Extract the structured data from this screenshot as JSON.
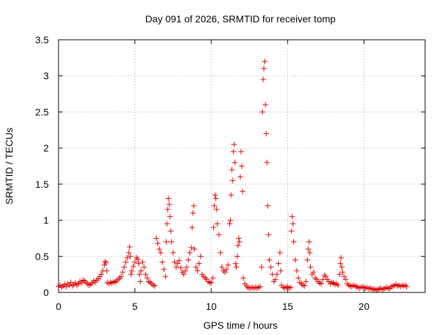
{
  "chart_data": {
    "type": "scatter",
    "title": "Day 091 of 2026, SRMTID for receiver tomp",
    "xlabel": "GPS time / hours",
    "ylabel": "SRMTID / TECUs",
    "xlim": [
      0,
      24
    ],
    "ylim": [
      0,
      3.5
    ],
    "xticks": [
      0,
      5,
      10,
      15,
      20
    ],
    "xtick_labels": [
      "0",
      "5",
      "10",
      "15",
      "20"
    ],
    "yticks": [
      0,
      0.5,
      1,
      1.5,
      2,
      2.5,
      3,
      3.5
    ],
    "ytick_labels": [
      "0",
      "0.5",
      "1",
      "1.5",
      "2",
      "2.5",
      "3",
      "3.5"
    ],
    "grid": true,
    "marker": "plus",
    "color": "#e00000",
    "series": [
      {
        "name": "SRMTID",
        "points": [
          [
            0.0,
            0.08
          ],
          [
            0.1,
            0.1
          ],
          [
            0.2,
            0.07
          ],
          [
            0.3,
            0.09
          ],
          [
            0.4,
            0.11
          ],
          [
            0.5,
            0.08
          ],
          [
            0.6,
            0.12
          ],
          [
            0.7,
            0.1
          ],
          [
            0.8,
            0.14
          ],
          [
            0.9,
            0.09
          ],
          [
            1.0,
            0.11
          ],
          [
            1.1,
            0.13
          ],
          [
            1.2,
            0.1
          ],
          [
            1.3,
            0.12
          ],
          [
            1.4,
            0.15
          ],
          [
            1.5,
            0.13
          ],
          [
            1.6,
            0.17
          ],
          [
            1.7,
            0.16
          ],
          [
            1.8,
            0.14
          ],
          [
            1.9,
            0.12
          ],
          [
            2.0,
            0.1
          ],
          [
            2.1,
            0.11
          ],
          [
            2.2,
            0.13
          ],
          [
            2.3,
            0.16
          ],
          [
            2.4,
            0.14
          ],
          [
            2.5,
            0.17
          ],
          [
            2.6,
            0.19
          ],
          [
            2.7,
            0.22
          ],
          [
            2.8,
            0.25
          ],
          [
            2.9,
            0.3
          ],
          [
            3.0,
            0.38
          ],
          [
            3.05,
            0.43
          ],
          [
            3.1,
            0.41
          ],
          [
            3.15,
            0.3
          ],
          [
            3.2,
            0.14
          ],
          [
            3.3,
            0.12
          ],
          [
            3.4,
            0.14
          ],
          [
            3.5,
            0.13
          ],
          [
            3.6,
            0.15
          ],
          [
            3.7,
            0.14
          ],
          [
            3.8,
            0.16
          ],
          [
            3.9,
            0.18
          ],
          [
            4.0,
            0.2
          ],
          [
            4.1,
            0.22
          ],
          [
            4.2,
            0.28
          ],
          [
            4.3,
            0.35
          ],
          [
            4.4,
            0.42
          ],
          [
            4.5,
            0.48
          ],
          [
            4.6,
            0.55
          ],
          [
            4.65,
            0.63
          ],
          [
            4.7,
            0.5
          ],
          [
            4.75,
            0.25
          ],
          [
            4.8,
            0.3
          ],
          [
            4.9,
            0.36
          ],
          [
            5.0,
            0.42
          ],
          [
            5.1,
            0.48
          ],
          [
            5.2,
            0.46
          ],
          [
            5.25,
            0.4
          ],
          [
            5.3,
            0.25
          ],
          [
            5.35,
            0.15
          ],
          [
            5.4,
            0.3
          ],
          [
            5.5,
            0.42
          ],
          [
            5.6,
            0.35
          ],
          [
            5.7,
            0.25
          ],
          [
            5.8,
            0.2
          ],
          [
            5.9,
            0.15
          ],
          [
            6.0,
            0.14
          ],
          [
            6.1,
            0.12
          ],
          [
            6.2,
            0.1
          ],
          [
            6.3,
            0.09
          ],
          [
            6.4,
            0.75
          ],
          [
            6.5,
            0.68
          ],
          [
            6.6,
            0.6
          ],
          [
            6.7,
            0.55
          ],
          [
            6.8,
            0.42
          ],
          [
            6.9,
            0.32
          ],
          [
            7.0,
            0.22
          ],
          [
            7.05,
            0.7
          ],
          [
            7.1,
            0.95
          ],
          [
            7.15,
            1.15
          ],
          [
            7.2,
            1.3
          ],
          [
            7.25,
            1.22
          ],
          [
            7.3,
            1.05
          ],
          [
            7.35,
            0.85
          ],
          [
            7.4,
            0.7
          ],
          [
            7.5,
            0.55
          ],
          [
            7.6,
            0.42
          ],
          [
            7.7,
            0.35
          ],
          [
            7.8,
            0.4
          ],
          [
            7.9,
            0.44
          ],
          [
            8.0,
            0.34
          ],
          [
            8.1,
            0.28
          ],
          [
            8.2,
            0.25
          ],
          [
            8.3,
            0.3
          ],
          [
            8.4,
            0.35
          ],
          [
            8.5,
            0.45
          ],
          [
            8.6,
            0.55
          ],
          [
            8.7,
            0.62
          ],
          [
            8.75,
            0.9
          ],
          [
            8.8,
            1.1
          ],
          [
            8.85,
            1.2
          ],
          [
            8.9,
            0.6
          ],
          [
            9.0,
            0.35
          ],
          [
            9.1,
            0.3
          ],
          [
            9.2,
            0.4
          ],
          [
            9.3,
            0.5
          ],
          [
            9.4,
            0.25
          ],
          [
            9.5,
            0.22
          ],
          [
            9.6,
            0.2
          ],
          [
            9.7,
            0.18
          ],
          [
            9.8,
            0.15
          ],
          [
            9.9,
            0.13
          ],
          [
            10.0,
            0.14
          ],
          [
            10.1,
            0.2
          ],
          [
            10.15,
            0.9
          ],
          [
            10.2,
            1.2
          ],
          [
            10.25,
            1.35
          ],
          [
            10.3,
            1.3
          ],
          [
            10.35,
            1.15
          ],
          [
            10.4,
            0.95
          ],
          [
            10.5,
            0.8
          ],
          [
            10.6,
            0.55
          ],
          [
            10.7,
            0.35
          ],
          [
            10.8,
            0.3
          ],
          [
            10.9,
            0.28
          ],
          [
            11.0,
            0.32
          ],
          [
            11.1,
            0.38
          ],
          [
            11.2,
            0.95
          ],
          [
            11.25,
            1.0
          ],
          [
            11.3,
            1.35
          ],
          [
            11.35,
            1.7
          ],
          [
            11.4,
            1.55
          ],
          [
            11.45,
            1.95
          ],
          [
            11.5,
            2.05
          ],
          [
            11.55,
            1.8
          ],
          [
            11.6,
            0.4
          ],
          [
            11.65,
            0.35
          ],
          [
            11.7,
            0.5
          ],
          [
            11.75,
            0.65
          ],
          [
            11.8,
            0.75
          ],
          [
            11.85,
            0.7
          ],
          [
            11.9,
            1.6
          ],
          [
            11.95,
            1.95
          ],
          [
            12.0,
            1.75
          ],
          [
            12.05,
            1.4
          ],
          [
            12.1,
            0.2
          ],
          [
            12.2,
            0.12
          ],
          [
            12.3,
            0.09
          ],
          [
            12.4,
            0.07
          ],
          [
            12.5,
            0.06
          ],
          [
            12.6,
            0.06
          ],
          [
            12.7,
            0.07
          ],
          [
            12.8,
            0.06
          ],
          [
            12.9,
            0.07
          ],
          [
            13.0,
            0.06
          ],
          [
            13.1,
            0.07
          ],
          [
            13.2,
            0.08
          ],
          [
            13.3,
            0.35
          ],
          [
            13.35,
            2.5
          ],
          [
            13.4,
            2.95
          ],
          [
            13.45,
            3.1
          ],
          [
            13.5,
            3.2
          ],
          [
            13.55,
            2.6
          ],
          [
            13.6,
            2.2
          ],
          [
            13.65,
            1.8
          ],
          [
            13.7,
            1.2
          ],
          [
            13.75,
            0.8
          ],
          [
            13.8,
            0.45
          ],
          [
            13.9,
            0.35
          ],
          [
            14.0,
            0.25
          ],
          [
            14.1,
            0.15
          ],
          [
            14.2,
            0.18
          ],
          [
            14.3,
            0.25
          ],
          [
            14.4,
            0.4
          ],
          [
            14.5,
            0.55
          ],
          [
            14.55,
            0.3
          ],
          [
            14.6,
            0.1
          ],
          [
            14.7,
            0.07
          ],
          [
            14.8,
            0.06
          ],
          [
            14.9,
            0.07
          ],
          [
            15.0,
            0.08
          ],
          [
            15.1,
            0.06
          ],
          [
            15.2,
            0.07
          ],
          [
            15.25,
            0.85
          ],
          [
            15.3,
            1.05
          ],
          [
            15.35,
            0.95
          ],
          [
            15.4,
            0.7
          ],
          [
            15.5,
            0.45
          ],
          [
            15.6,
            0.3
          ],
          [
            15.7,
            0.2
          ],
          [
            15.8,
            0.14
          ],
          [
            15.9,
            0.12
          ],
          [
            16.0,
            0.1
          ],
          [
            16.1,
            0.09
          ],
          [
            16.2,
            0.15
          ],
          [
            16.3,
            0.45
          ],
          [
            16.35,
            0.6
          ],
          [
            16.4,
            0.7
          ],
          [
            16.45,
            0.55
          ],
          [
            16.5,
            0.35
          ],
          [
            16.6,
            0.25
          ],
          [
            16.7,
            0.28
          ],
          [
            16.8,
            0.2
          ],
          [
            16.9,
            0.18
          ],
          [
            17.0,
            0.15
          ],
          [
            17.1,
            0.13
          ],
          [
            17.2,
            0.12
          ],
          [
            17.3,
            0.18
          ],
          [
            17.4,
            0.24
          ],
          [
            17.5,
            0.22
          ],
          [
            17.6,
            0.18
          ],
          [
            17.7,
            0.15
          ],
          [
            17.8,
            0.12
          ],
          [
            17.9,
            0.14
          ],
          [
            18.0,
            0.13
          ],
          [
            18.1,
            0.11
          ],
          [
            18.2,
            0.12
          ],
          [
            18.3,
            0.1
          ],
          [
            18.4,
            0.25
          ],
          [
            18.45,
            0.4
          ],
          [
            18.5,
            0.48
          ],
          [
            18.55,
            0.35
          ],
          [
            18.6,
            0.28
          ],
          [
            18.7,
            0.22
          ],
          [
            18.8,
            0.18
          ],
          [
            18.9,
            0.12
          ],
          [
            19.0,
            0.1
          ],
          [
            19.1,
            0.09
          ],
          [
            19.2,
            0.08
          ],
          [
            19.3,
            0.1
          ],
          [
            19.4,
            0.09
          ],
          [
            19.5,
            0.08
          ],
          [
            19.6,
            0.07
          ],
          [
            19.7,
            0.06
          ],
          [
            19.8,
            0.07
          ],
          [
            19.9,
            0.08
          ],
          [
            20.0,
            0.07
          ],
          [
            20.1,
            0.06
          ],
          [
            20.2,
            0.07
          ],
          [
            20.3,
            0.05
          ],
          [
            20.4,
            0.06
          ],
          [
            20.5,
            0.05
          ],
          [
            20.6,
            0.04
          ],
          [
            20.7,
            0.05
          ],
          [
            20.8,
            0.03
          ],
          [
            20.9,
            0.04
          ],
          [
            21.0,
            0.05
          ],
          [
            21.1,
            0.06
          ],
          [
            21.2,
            0.04
          ],
          [
            21.3,
            0.05
          ],
          [
            21.4,
            0.06
          ],
          [
            21.5,
            0.07
          ],
          [
            21.6,
            0.05
          ],
          [
            21.7,
            0.06
          ],
          [
            21.8,
            0.08
          ],
          [
            21.9,
            0.09
          ],
          [
            22.0,
            0.1
          ],
          [
            22.1,
            0.11
          ],
          [
            22.2,
            0.09
          ],
          [
            22.3,
            0.1
          ],
          [
            22.4,
            0.08
          ],
          [
            22.5,
            0.1
          ],
          [
            22.6,
            0.09
          ],
          [
            22.7,
            0.1
          ],
          [
            22.8,
            0.08
          ]
        ]
      }
    ]
  }
}
